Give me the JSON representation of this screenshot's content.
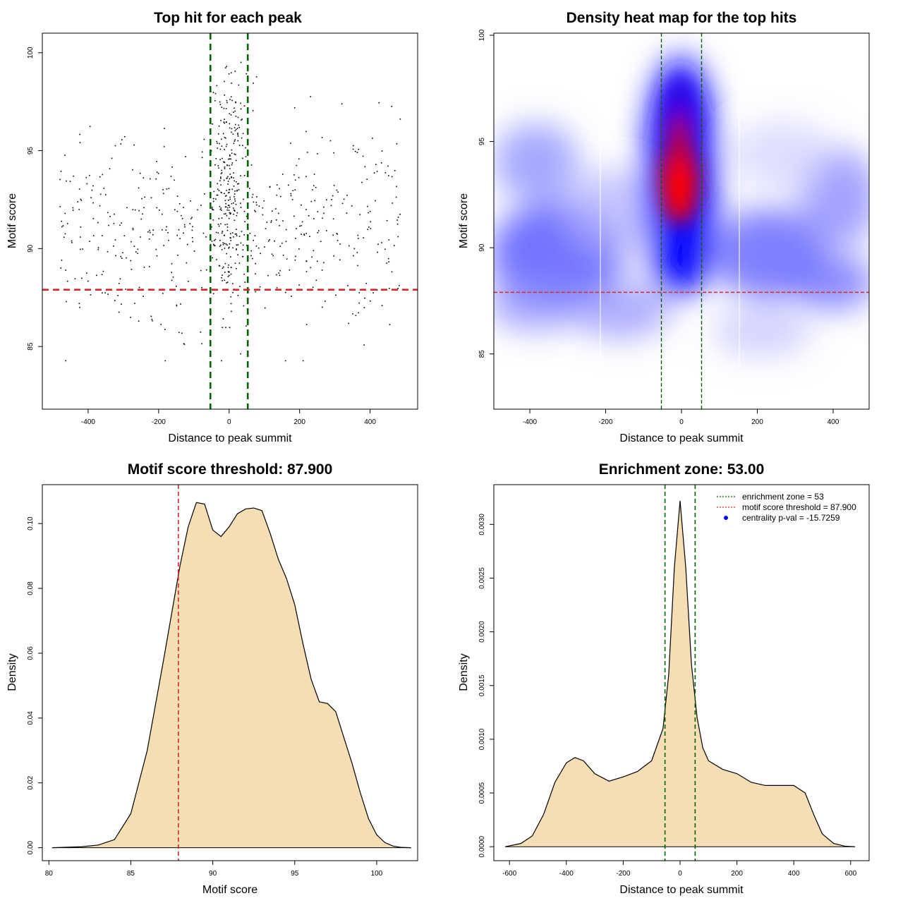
{
  "chart_data": [
    {
      "type": "scatter",
      "title": "Top hit for each peak",
      "xlabel": "Distance to peak summit",
      "ylabel": "Motif score",
      "xlim": [
        -530,
        535
      ],
      "ylim": [
        81.8,
        101
      ],
      "xticks": [
        -400,
        -200,
        0,
        200,
        400
      ],
      "yticks": [
        85,
        90,
        95,
        100
      ],
      "vlines": [
        -53,
        53
      ],
      "hline": 87.9,
      "colors": {
        "points": "#000000",
        "vlines": "#006400",
        "hline": "#d62728"
      }
    },
    {
      "type": "heatmap",
      "title": "Density heat map for the top hits",
      "xlabel": "Distance to peak summit",
      "ylabel": "Motif score",
      "xlim": [
        -495,
        495
      ],
      "ylim": [
        82.4,
        100.1
      ],
      "xticks": [
        -400,
        -200,
        0,
        200,
        400
      ],
      "yticks": [
        85,
        90,
        95,
        100
      ],
      "vlines": [
        -53,
        53
      ],
      "hline": 87.9,
      "colors": {
        "low": "#ffffff",
        "mid": "#0000ff",
        "high": "#ff0000"
      }
    },
    {
      "type": "area",
      "title": "Motif score threshold: 87.900",
      "xlabel": "Motif score",
      "ylabel": "Density",
      "xlim": [
        79.6,
        102.5
      ],
      "ylim": [
        -0.004,
        0.112
      ],
      "xticks": [
        80,
        85,
        90,
        95,
        100
      ],
      "yticks": [
        0.0,
        0.02,
        0.04,
        0.06,
        0.08,
        0.1
      ],
      "ytick_labels": [
        "0.00",
        "0.02",
        "0.04",
        "0.06",
        "0.08",
        "0.10"
      ],
      "vline": 87.9,
      "x": [
        80.2,
        82.0,
        83.0,
        84.0,
        85.0,
        86.0,
        87.0,
        88.0,
        88.5,
        89.0,
        89.5,
        90.0,
        90.5,
        91.0,
        91.5,
        92.0,
        92.5,
        93.0,
        93.5,
        94.0,
        94.5,
        95.0,
        95.5,
        96.0,
        96.5,
        97.0,
        97.5,
        98.0,
        98.5,
        99.0,
        99.5,
        100.0,
        100.5,
        101.0,
        101.5,
        102.1
      ],
      "y": [
        0.0,
        0.0003,
        0.0008,
        0.0025,
        0.0105,
        0.03,
        0.058,
        0.087,
        0.099,
        0.1065,
        0.106,
        0.098,
        0.096,
        0.099,
        0.103,
        0.1045,
        0.1048,
        0.104,
        0.097,
        0.089,
        0.083,
        0.075,
        0.063,
        0.052,
        0.045,
        0.0445,
        0.042,
        0.034,
        0.026,
        0.017,
        0.009,
        0.004,
        0.0016,
        0.0005,
        0.0001,
        0.0
      ],
      "colors": {
        "fill": "#f5deb3",
        "line": "#000000",
        "vline": "#d62728"
      }
    },
    {
      "type": "area",
      "title": "Enrichment zone: 53.00",
      "xlabel": "Distance to peak summit",
      "ylabel": "Density",
      "xlim": [
        -655,
        665
      ],
      "ylim": [
        -0.00013,
        0.00337
      ],
      "xticks": [
        -600,
        -400,
        -200,
        0,
        200,
        400,
        600
      ],
      "yticks": [
        0,
        0.0005,
        0.001,
        0.0015,
        0.002,
        0.0025,
        0.003
      ],
      "ytick_labels": [
        "0.0000",
        "0.0005",
        "0.0010",
        "0.0015",
        "0.0020",
        "0.0025",
        "0.0030"
      ],
      "vlines": [
        -53,
        53
      ],
      "x": [
        -615,
        -560,
        -520,
        -480,
        -440,
        -400,
        -370,
        -340,
        -300,
        -250,
        -200,
        -150,
        -100,
        -60,
        -40,
        -20,
        0,
        20,
        40,
        60,
        80,
        100,
        150,
        200,
        250,
        300,
        350,
        400,
        440,
        470,
        500,
        540,
        580,
        615
      ],
      "y": [
        0.0,
        3e-05,
        0.0001,
        0.0003,
        0.0006,
        0.00078,
        0.00083,
        0.0008,
        0.00068,
        0.00061,
        0.00065,
        0.0007,
        0.0008,
        0.0011,
        0.0016,
        0.0026,
        0.00322,
        0.0026,
        0.0017,
        0.0012,
        0.00092,
        0.0008,
        0.00072,
        0.00068,
        0.0006,
        0.00057,
        0.00057,
        0.00057,
        0.0005,
        0.0003,
        0.00012,
        3e-05,
        5e-06,
        0.0
      ],
      "legend": [
        {
          "label": "enrichment zone = 53",
          "color": "#006400",
          "marker": "line"
        },
        {
          "label": "motif score threshold = 87.900",
          "color": "#d62728",
          "marker": "line"
        },
        {
          "label": "centrality p-val = -15.7259",
          "color": "#0000ff",
          "marker": "point"
        }
      ],
      "legend_position": "top-right",
      "colors": {
        "fill": "#f5deb3",
        "line": "#000000",
        "vlines": "#006400"
      }
    }
  ]
}
